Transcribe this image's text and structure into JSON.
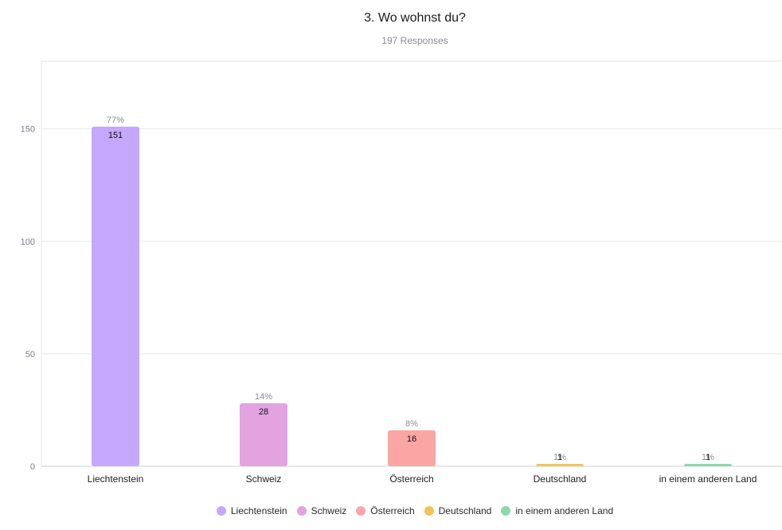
{
  "chart_data": {
    "type": "bar",
    "title": "3. Wo wohnst du?",
    "subtitle": "197 Responses",
    "categories": [
      "Liechtenstein",
      "Schweiz",
      "Österreich",
      "Deutschland",
      "in einem anderen Land"
    ],
    "values": [
      151,
      28,
      16,
      1,
      1
    ],
    "percent_labels": [
      "77%",
      "14%",
      "8%",
      "1%",
      "1%"
    ],
    "colors": [
      "#c5a8fc",
      "#e2a3e0",
      "#f9a6a4",
      "#f6c358",
      "#8fd8ac"
    ],
    "ylim": [
      0,
      180
    ],
    "yticks": [
      0,
      50,
      100,
      150
    ],
    "grid": true,
    "legend_position": "bottom"
  }
}
